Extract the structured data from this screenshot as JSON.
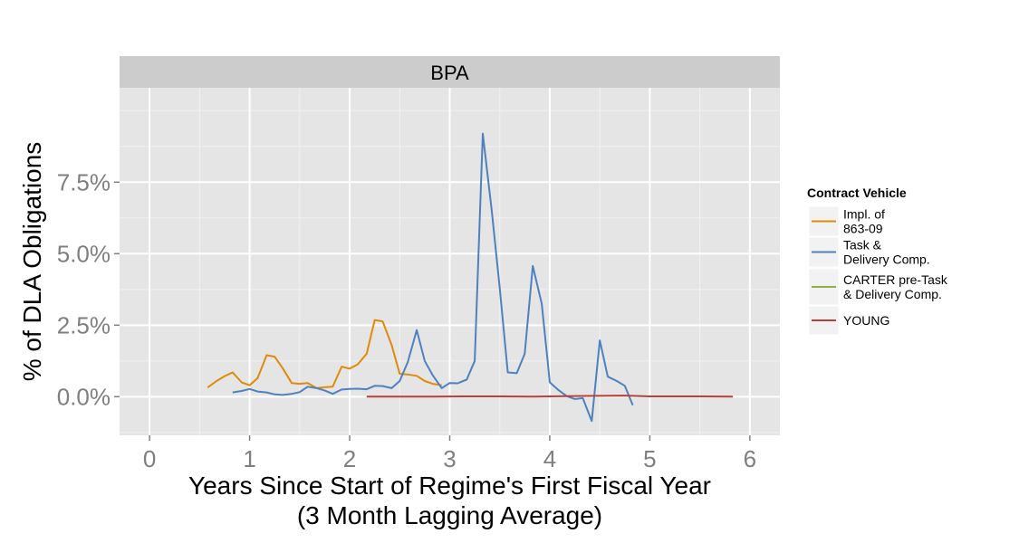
{
  "chart_data": {
    "type": "line",
    "facet": "BPA",
    "xlabel": [
      "Years Since Start of Regime's First Fiscal Year",
      "(3 Month Lagging Average)"
    ],
    "ylabel": "% of DLA Obligations",
    "xlim": [
      -0.3,
      6.3
    ],
    "ylim": [
      -1.35,
      10.8
    ],
    "x_ticks": [
      0,
      1,
      2,
      3,
      4,
      5,
      6
    ],
    "x_tick_labels": [
      "0",
      "1",
      "2",
      "3",
      "4",
      "5",
      "6"
    ],
    "y_ticks": [
      0,
      2.5,
      5,
      7.5
    ],
    "y_tick_labels": [
      "0.0%",
      "2.5%",
      "5.0%",
      "7.5%"
    ],
    "grid": true,
    "legend": {
      "title": "Contract Vehicle",
      "placement": "right",
      "entries": [
        {
          "lines": [
            "Impl. of",
            "863-09"
          ],
          "color": "#E08A0B"
        },
        {
          "lines": [
            "Task &",
            "Delivery Comp."
          ],
          "color": "#4F81BD"
        },
        {
          "lines": [
            "CARTER pre-Task",
            "& Delivery Comp."
          ],
          "color": "#8DB04A"
        },
        {
          "lines": [
            "YOUNG"
          ],
          "color": "#B7403A"
        }
      ]
    },
    "series": [
      {
        "name": "Impl. of 863-09",
        "color": "#E08A0B",
        "x": [
          0.58,
          0.67,
          0.75,
          0.83,
          0.92,
          1.0,
          1.08,
          1.17,
          1.25,
          1.33,
          1.42,
          1.5,
          1.58,
          1.67,
          1.75,
          1.83,
          1.92,
          2.0,
          2.08,
          2.17,
          2.25,
          2.33,
          2.42,
          2.5,
          2.58,
          2.67,
          2.75,
          2.83,
          2.92
        ],
        "y": [
          0.32,
          0.55,
          0.72,
          0.85,
          0.5,
          0.4,
          0.65,
          1.45,
          1.4,
          1.0,
          0.48,
          0.45,
          0.48,
          0.3,
          0.33,
          0.35,
          1.05,
          0.98,
          1.13,
          1.5,
          2.68,
          2.63,
          1.8,
          0.8,
          0.78,
          0.73,
          0.55,
          0.45,
          0.4
        ]
      },
      {
        "name": "Task & Delivery Comp.",
        "color": "#4F81BD",
        "x": [
          0.83,
          0.92,
          1.0,
          1.08,
          1.17,
          1.25,
          1.33,
          1.42,
          1.5,
          1.58,
          1.67,
          1.75,
          1.83,
          1.92,
          2.0,
          2.08,
          2.17,
          2.25,
          2.33,
          2.42,
          2.5,
          2.58,
          2.67,
          2.75,
          2.83,
          2.92,
          3.0,
          3.08,
          3.17,
          3.25,
          3.33,
          3.42,
          3.5,
          3.58,
          3.67,
          3.75,
          3.83,
          3.92,
          4.0,
          4.08,
          4.17,
          4.25,
          4.33,
          4.42,
          4.5,
          4.58,
          4.67,
          4.75,
          4.83
        ],
        "y": [
          0.15,
          0.2,
          0.27,
          0.18,
          0.15,
          0.08,
          0.06,
          0.1,
          0.16,
          0.35,
          0.3,
          0.22,
          0.1,
          0.25,
          0.27,
          0.28,
          0.26,
          0.38,
          0.37,
          0.3,
          0.55,
          1.2,
          2.33,
          1.25,
          0.75,
          0.3,
          0.48,
          0.47,
          0.6,
          1.25,
          9.2,
          6.5,
          3.8,
          0.85,
          0.82,
          1.5,
          4.57,
          3.25,
          0.5,
          0.25,
          0.02,
          -0.08,
          -0.05,
          -0.85,
          1.97,
          0.7,
          0.55,
          0.38,
          -0.3
        ]
      },
      {
        "name": "CARTER pre-Task & Delivery Comp.",
        "color": "#8DB04A",
        "x": [],
        "y": []
      },
      {
        "name": "YOUNG",
        "color": "#B7403A",
        "x": [
          2.17,
          2.5,
          2.83,
          3.17,
          3.5,
          3.83,
          4.17,
          4.5,
          4.75,
          5.0,
          5.25,
          5.5,
          5.83
        ],
        "y": [
          0.0,
          0.0,
          0.0,
          0.01,
          0.01,
          0.0,
          0.02,
          0.03,
          0.04,
          0.01,
          0.01,
          0.01,
          0.0
        ]
      }
    ]
  }
}
